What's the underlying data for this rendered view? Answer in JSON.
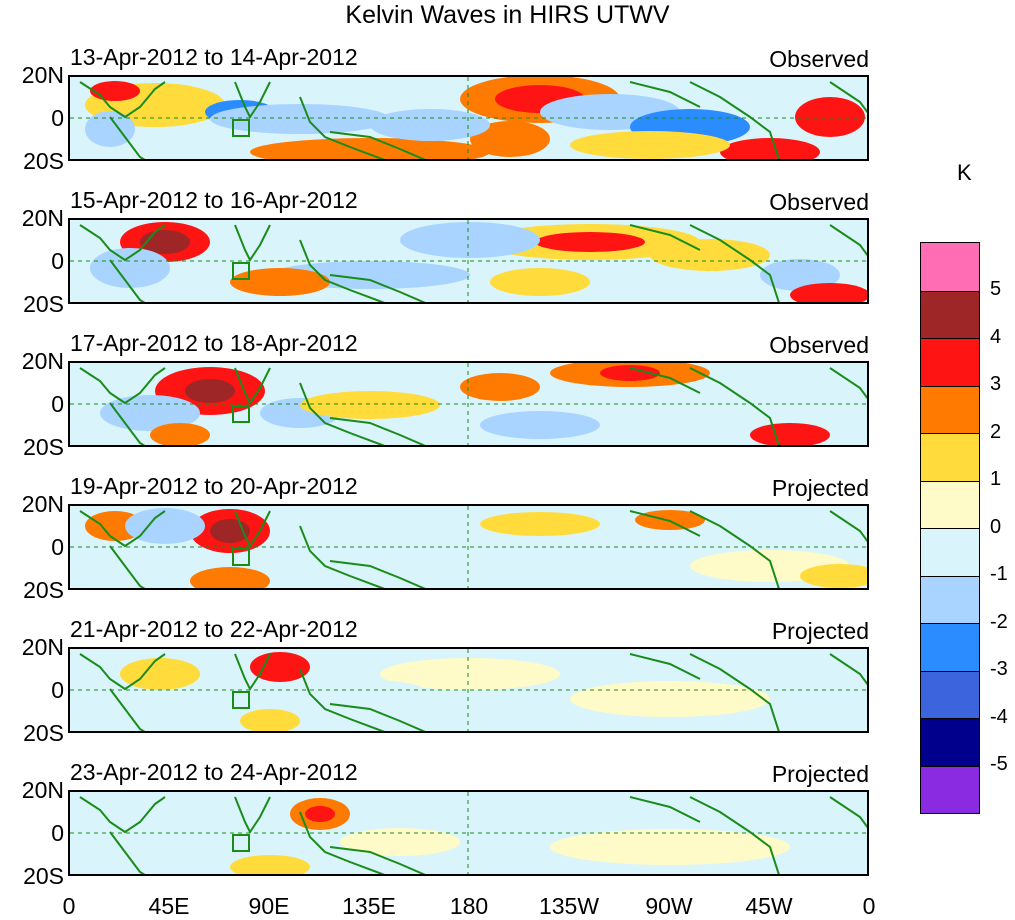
{
  "title": "Kelvin Waves in HIRS UTWV",
  "y_ticks": [
    "20N",
    "0",
    "20S"
  ],
  "x_ticks": [
    "0",
    "45E",
    "90E",
    "135E",
    "180",
    "135W",
    "90W",
    "45W",
    "0"
  ],
  "panels": [
    {
      "date": "13-Apr-2012 to 14-Apr-2012",
      "type": "Observed"
    },
    {
      "date": "15-Apr-2012 to 16-Apr-2012",
      "type": "Observed"
    },
    {
      "date": "17-Apr-2012 to 18-Apr-2012",
      "type": "Observed"
    },
    {
      "date": "19-Apr-2012 to 20-Apr-2012",
      "type": "Projected"
    },
    {
      "date": "21-Apr-2012 to 22-Apr-2012",
      "type": "Projected"
    },
    {
      "date": "23-Apr-2012 to 24-Apr-2012",
      "type": "Projected"
    }
  ],
  "colorbar": {
    "unit": "K",
    "labels": [
      "5",
      "4",
      "3",
      "2",
      "1",
      "0",
      "-1",
      "-2",
      "-3",
      "-4",
      "-5"
    ],
    "colors": [
      "#ff6eb4",
      "#9e2626",
      "#ff1414",
      "#ff7a00",
      "#ffdb3c",
      "#fffbc8",
      "#d9f4fb",
      "#a8d4ff",
      "#2a8cff",
      "#3c64dc",
      "#00008c",
      "#8a2be2"
    ]
  },
  "colors": {
    "coast": "#1a8c1a",
    "dashed": "#1a8c1a"
  }
}
